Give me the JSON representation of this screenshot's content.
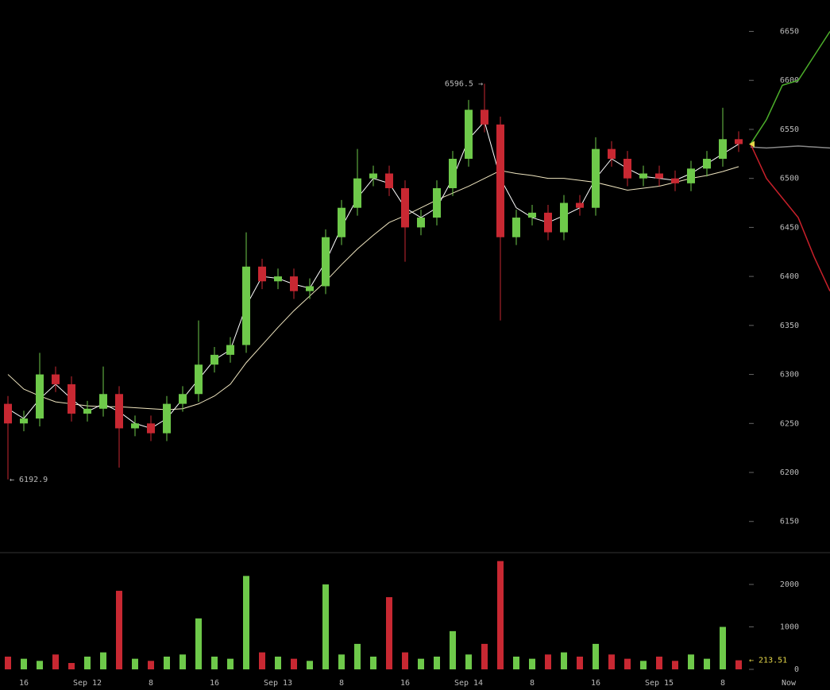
{
  "chart_data": {
    "type": "candlestick",
    "x_labels": [
      "16",
      "Sep 12",
      "8",
      "16",
      "Sep 13",
      "8",
      "16",
      "Sep 14",
      "8",
      "16",
      "Sep 15",
      "8",
      "Now"
    ],
    "open": [
      6270,
      6250,
      6255,
      6300,
      6290,
      6260,
      6265,
      6280,
      6245,
      6250,
      6240,
      6270,
      6280,
      6310,
      6320,
      6330,
      6410,
      6395,
      6400,
      6385,
      6390,
      6440,
      6470,
      6500,
      6505,
      6490,
      6450,
      6460,
      6490,
      6520,
      6570,
      6555,
      6440,
      6460,
      6465,
      6445,
      6475,
      6470,
      6530,
      6520,
      6500,
      6505,
      6500,
      6495,
      6510,
      6520,
      6540
    ],
    "high": [
      6278,
      6263,
      6322,
      6308,
      6298,
      6273,
      6308,
      6288,
      6258,
      6258,
      6278,
      6288,
      6355,
      6328,
      6338,
      6445,
      6418,
      6408,
      6408,
      6398,
      6448,
      6478,
      6530,
      6513,
      6513,
      6498,
      6468,
      6498,
      6528,
      6580,
      6596.5,
      6563,
      6468,
      6473,
      6473,
      6483,
      6483,
      6542,
      6538,
      6528,
      6513,
      6513,
      6508,
      6518,
      6528,
      6572,
      6548
    ],
    "low": [
      6192.9,
      6242,
      6247,
      6282,
      6252,
      6252,
      6257,
      6205,
      6237,
      6232,
      6232,
      6262,
      6272,
      6302,
      6312,
      6322,
      6387,
      6387,
      6377,
      6377,
      6382,
      6432,
      6462,
      6492,
      6482,
      6415,
      6442,
      6452,
      6482,
      6512,
      6547,
      6355,
      6432,
      6452,
      6437,
      6437,
      6462,
      6462,
      6512,
      6492,
      6492,
      6492,
      6487,
      6487,
      6502,
      6512,
      6527
    ],
    "close": [
      6250,
      6255,
      6300,
      6290,
      6260,
      6265,
      6280,
      6245,
      6250,
      6240,
      6270,
      6280,
      6310,
      6320,
      6330,
      6410,
      6395,
      6400,
      6385,
      6390,
      6440,
      6470,
      6500,
      6505,
      6490,
      6450,
      6460,
      6490,
      6520,
      6570,
      6555,
      6440,
      6460,
      6465,
      6445,
      6475,
      6470,
      6530,
      6520,
      6500,
      6505,
      6500,
      6495,
      6510,
      6520,
      6540,
      6535
    ],
    "ma_short": {
      "color": "#ffffff",
      "values": [
        6265,
        6255,
        6275,
        6290,
        6275,
        6262,
        6270,
        6262,
        6250,
        6245,
        6255,
        6275,
        6295,
        6315,
        6325,
        6370,
        6400,
        6398,
        6392,
        6388,
        6415,
        6450,
        6480,
        6500,
        6495,
        6470,
        6460,
        6470,
        6500,
        6540,
        6558,
        6500,
        6470,
        6460,
        6455,
        6462,
        6470,
        6500,
        6520,
        6510,
        6502,
        6500,
        6498,
        6505,
        6515,
        6525,
        6535
      ]
    },
    "ma_long": {
      "color": "#f0e6c0",
      "values": [
        6300,
        6285,
        6278,
        6272,
        6270,
        6268,
        6267,
        6267,
        6266,
        6265,
        6264,
        6265,
        6270,
        6278,
        6290,
        6312,
        6330,
        6348,
        6365,
        6380,
        6395,
        6412,
        6428,
        6442,
        6455,
        6462,
        6470,
        6478,
        6485,
        6492,
        6500,
        6508,
        6505,
        6503,
        6500,
        6500,
        6498,
        6496,
        6492,
        6488,
        6490,
        6492,
        6496,
        6500,
        6503,
        6507,
        6512
      ]
    },
    "depth": [
      {
        "color": "#4caf2a",
        "values": [
          6535,
          6560,
          6595,
          6600,
          6625,
          6650
        ]
      },
      {
        "color": "#888888",
        "values": [
          6532,
          6531,
          6532,
          6533,
          6532,
          6531
        ]
      },
      {
        "color": "#c8202a",
        "values": [
          6535,
          6500,
          6480,
          6460,
          6420,
          6385
        ]
      }
    ],
    "up_color": "#6ec94a",
    "down_color": "#c82832",
    "ylim": [
      6119,
      6682
    ],
    "yticks": [
      6150,
      6200,
      6250,
      6300,
      6350,
      6400,
      6450,
      6500,
      6550,
      6600,
      6650
    ],
    "volume": {
      "values": [
        300,
        250,
        200,
        350,
        150,
        300,
        400,
        1850,
        250,
        200,
        300,
        350,
        1200,
        300,
        250,
        2200,
        400,
        300,
        250,
        200,
        2000,
        350,
        600,
        300,
        1700,
        400,
        250,
        300,
        900,
        350,
        600,
        2550,
        300,
        250,
        350,
        400,
        300,
        600,
        350,
        250,
        200,
        300,
        200,
        350,
        250,
        1000,
        213.51
      ],
      "ylim": [
        0,
        2730
      ],
      "yticks": [
        0,
        1000,
        2000
      ]
    },
    "annotations": {
      "high": "6596.5 →",
      "low": "← 6192.9",
      "volume": "← 213.51"
    }
  }
}
